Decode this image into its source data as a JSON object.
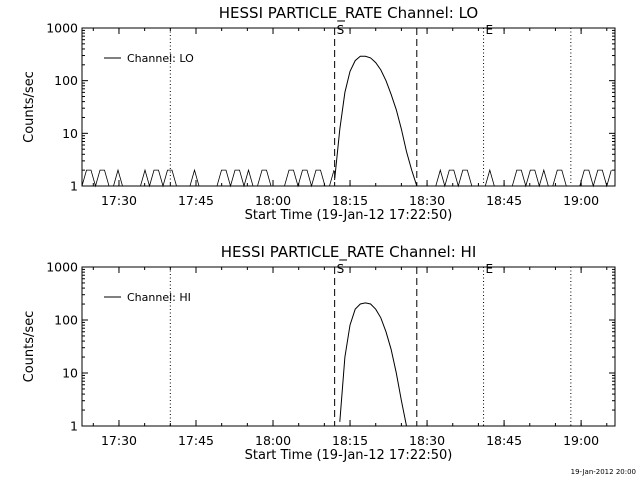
{
  "footer": {
    "timestamp": "19-Jan-2012 20:00"
  },
  "chart_data": [
    {
      "type": "line",
      "title": "HESSI PARTICLE_RATE Channel: LO",
      "xlabel": "Start Time (19-Jan-12 17:22:50)",
      "ylabel": "Counts/sec",
      "yscale": "log",
      "ylim": [
        1,
        1000
      ],
      "xlim": [
        17.38,
        19.11
      ],
      "xticks": [
        "17:30",
        "17:45",
        "18:00",
        "18:15",
        "18:30",
        "18:45",
        "19:00"
      ],
      "yticks": [
        "1",
        "10",
        "100",
        "1000"
      ],
      "legend": {
        "label": "Channel: LO",
        "placement": "top-left"
      },
      "markers": [
        {
          "label": "S",
          "time": "18:12",
          "style": "dashed"
        },
        {
          "label": "",
          "time": "18:28",
          "style": "dashed"
        },
        {
          "label": "",
          "time": "17:40",
          "style": "dotted"
        },
        {
          "label": "E",
          "time": "18:41",
          "style": "dotted"
        },
        {
          "label": "",
          "time": "18:58",
          "style": "dotted"
        }
      ],
      "series": [
        {
          "name": "Channel: LO",
          "x": [
            "18:12",
            "18:13",
            "18:14",
            "18:15",
            "18:16",
            "18:17",
            "18:18",
            "18:19",
            "18:20",
            "18:21",
            "18:22",
            "18:23",
            "18:24",
            "18:25",
            "18:26",
            "18:27",
            "18:28"
          ],
          "y": [
            1.3,
            12,
            60,
            150,
            240,
            290,
            290,
            270,
            220,
            160,
            100,
            55,
            28,
            12,
            4.5,
            2,
            1
          ],
          "baseline_noise": "sporadic spikes between 1 and 2 counts/sec"
        }
      ]
    },
    {
      "type": "line",
      "title": "HESSI PARTICLE_RATE Channel: HI",
      "xlabel": "Start Time (19-Jan-12 17:22:50)",
      "ylabel": "Counts/sec",
      "yscale": "log",
      "ylim": [
        1,
        1000
      ],
      "xlim": [
        17.38,
        19.11
      ],
      "xticks": [
        "17:30",
        "17:45",
        "18:00",
        "18:15",
        "18:30",
        "18:45",
        "19:00"
      ],
      "yticks": [
        "1",
        "10",
        "100",
        "1000"
      ],
      "legend": {
        "label": "Channel: HI",
        "placement": "top-left"
      },
      "markers": [
        {
          "label": "S",
          "time": "18:12",
          "style": "dashed"
        },
        {
          "label": "",
          "time": "18:28",
          "style": "dashed"
        },
        {
          "label": "",
          "time": "17:40",
          "style": "dotted"
        },
        {
          "label": "E",
          "time": "18:41",
          "style": "dotted"
        },
        {
          "label": "",
          "time": "18:58",
          "style": "dotted"
        }
      ],
      "series": [
        {
          "name": "Channel: HI",
          "x": [
            "18:13",
            "18:14",
            "18:15",
            "18:16",
            "18:17",
            "18:18",
            "18:19",
            "18:20",
            "18:21",
            "18:22",
            "18:23",
            "18:24",
            "18:25",
            "18:26"
          ],
          "y": [
            1.2,
            20,
            80,
            160,
            200,
            210,
            200,
            160,
            110,
            60,
            28,
            10,
            3,
            1
          ]
        }
      ]
    }
  ]
}
